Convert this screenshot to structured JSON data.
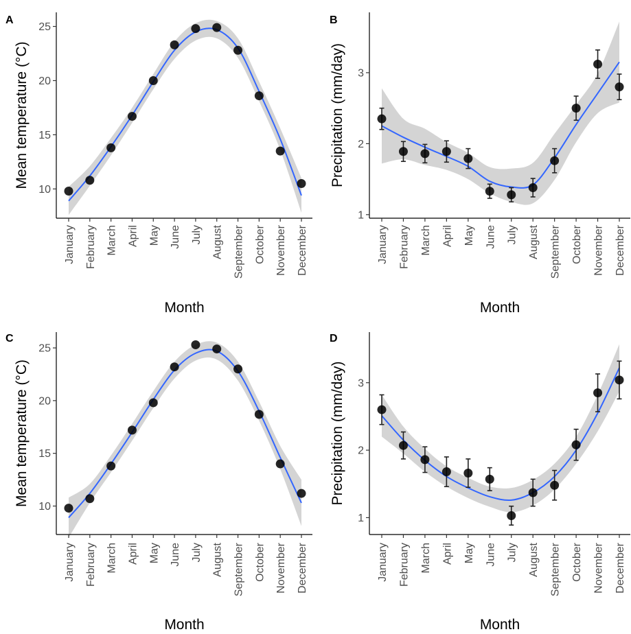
{
  "months": [
    "January",
    "February",
    "March",
    "April",
    "May",
    "June",
    "July",
    "August",
    "September",
    "October",
    "November",
    "December"
  ],
  "chart_data": [
    {
      "id": "A",
      "type": "scatter",
      "panel_label": "A",
      "xlabel": "Month",
      "ylabel": "Mean temperature (°C)",
      "ylim": [
        7.3,
        26.3
      ],
      "yticks": [
        10,
        15,
        20,
        25
      ],
      "x": [
        "January",
        "February",
        "March",
        "April",
        "May",
        "June",
        "July",
        "August",
        "September",
        "October",
        "November",
        "December"
      ],
      "points": [
        9.8,
        10.8,
        13.8,
        16.7,
        20.0,
        23.3,
        24.8,
        24.9,
        22.8,
        18.6,
        13.5,
        10.5
      ],
      "errors": null,
      "smooth": [
        8.9,
        11.2,
        13.9,
        16.8,
        19.9,
        22.8,
        24.5,
        24.7,
        23.0,
        19.0,
        14.6,
        9.4
      ],
      "band_low": [
        7.6,
        10.3,
        13.1,
        16.1,
        19.2,
        22.0,
        23.7,
        23.9,
        22.1,
        18.1,
        13.6,
        7.8
      ],
      "band_high": [
        10.2,
        12.1,
        14.7,
        17.5,
        20.6,
        23.6,
        25.3,
        25.5,
        23.9,
        19.9,
        15.6,
        11.0
      ],
      "smooth_color": "#3366FF",
      "grid": false
    },
    {
      "id": "B",
      "type": "scatter",
      "panel_label": "B",
      "xlabel": "Month",
      "ylabel": "Precipitation (mm/day)",
      "ylim": [
        0.95,
        3.85
      ],
      "yticks": [
        1,
        2,
        3
      ],
      "x": [
        "January",
        "February",
        "March",
        "April",
        "May",
        "June",
        "July",
        "August",
        "September",
        "October",
        "November",
        "December"
      ],
      "points": [
        2.35,
        1.89,
        1.86,
        1.89,
        1.79,
        1.33,
        1.28,
        1.38,
        1.76,
        2.5,
        3.12,
        2.8
      ],
      "errors": [
        0.15,
        0.14,
        0.13,
        0.15,
        0.14,
        0.1,
        0.1,
        0.13,
        0.17,
        0.17,
        0.2,
        0.18
      ],
      "smooth": [
        2.25,
        2.09,
        1.95,
        1.82,
        1.68,
        1.47,
        1.39,
        1.42,
        1.8,
        2.27,
        2.71,
        3.15
      ],
      "band_low": [
        1.72,
        1.78,
        1.7,
        1.63,
        1.5,
        1.3,
        1.18,
        1.16,
        1.49,
        2.02,
        2.43,
        2.58
      ],
      "band_high": [
        2.78,
        2.35,
        2.21,
        2.02,
        1.87,
        1.67,
        1.65,
        1.73,
        2.14,
        2.55,
        2.99,
        3.72
      ],
      "smooth_color": "#3366FF",
      "grid": false
    },
    {
      "id": "C",
      "type": "scatter",
      "panel_label": "C",
      "xlabel": "Month",
      "ylabel": "Mean temperature (°C)",
      "ylim": [
        7.3,
        26.5
      ],
      "yticks": [
        10,
        15,
        20,
        25
      ],
      "x": [
        "January",
        "February",
        "March",
        "April",
        "May",
        "June",
        "July",
        "August",
        "September",
        "October",
        "November",
        "December"
      ],
      "points": [
        9.8,
        10.7,
        13.8,
        17.2,
        19.8,
        23.2,
        25.3,
        24.9,
        23.0,
        18.7,
        14.0,
        11.2
      ],
      "errors": null,
      "smooth": [
        8.9,
        11.2,
        14.0,
        17.0,
        20.1,
        22.9,
        24.5,
        24.7,
        22.8,
        19.0,
        14.6,
        10.3
      ],
      "band_low": [
        7.0,
        10.3,
        13.2,
        16.2,
        19.3,
        22.1,
        23.8,
        23.9,
        21.9,
        18.1,
        13.5,
        8.1
      ],
      "band_high": [
        10.8,
        12.1,
        14.8,
        17.8,
        20.9,
        23.7,
        25.3,
        25.5,
        23.7,
        19.9,
        15.7,
        12.5
      ],
      "smooth_color": "#3366FF",
      "grid": false
    },
    {
      "id": "D",
      "type": "scatter",
      "panel_label": "D",
      "xlabel": "Month",
      "ylabel": "Precipitation (mm/day)",
      "ylim": [
        0.75,
        3.75
      ],
      "yticks": [
        1,
        2,
        3
      ],
      "x": [
        "January",
        "February",
        "March",
        "April",
        "May",
        "June",
        "July",
        "August",
        "September",
        "October",
        "November",
        "December"
      ],
      "points": [
        2.6,
        2.07,
        1.86,
        1.68,
        1.66,
        1.57,
        1.03,
        1.37,
        1.48,
        2.08,
        2.85,
        3.04
      ],
      "errors": [
        0.22,
        0.2,
        0.19,
        0.22,
        0.21,
        0.17,
        0.14,
        0.2,
        0.22,
        0.23,
        0.28,
        0.28
      ],
      "smooth": [
        2.51,
        2.15,
        1.85,
        1.61,
        1.44,
        1.31,
        1.26,
        1.37,
        1.61,
        2.0,
        2.55,
        3.22
      ],
      "band_low": [
        2.2,
        1.95,
        1.68,
        1.46,
        1.29,
        1.16,
        1.08,
        1.18,
        1.42,
        1.8,
        2.28,
        2.87
      ],
      "band_high": [
        2.82,
        2.35,
        2.02,
        1.76,
        1.59,
        1.46,
        1.44,
        1.56,
        1.8,
        2.2,
        2.82,
        3.57
      ],
      "smooth_color": "#3366FF",
      "grid": false
    }
  ]
}
